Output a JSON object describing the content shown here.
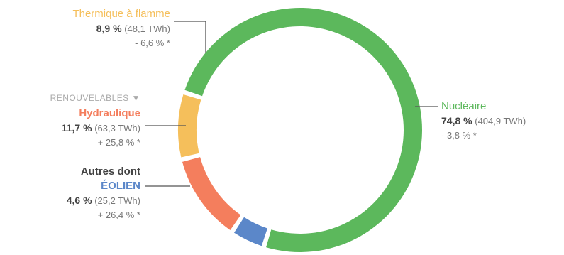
{
  "chart_data": {
    "type": "donut",
    "segments": [
      {
        "name": "Nucléaire",
        "percent": "74,8 %",
        "energy": "404,9 TWh",
        "change": "- 3,8 % *",
        "value": 74.8,
        "color": "#5cb85c"
      },
      {
        "name": "Thermique à flamme",
        "percent": "8,9 %",
        "energy": "48,1 TWh",
        "change": "- 6,6 % *",
        "value": 8.9,
        "color": "#f5bf5b"
      },
      {
        "name": "Hydraulique",
        "percent": "11,7 %",
        "energy": "63,3 TWh",
        "change": "+ 25,8 % *",
        "value": 11.7,
        "color": "#f47e5d"
      },
      {
        "name": "ÉOLIEN",
        "prefix": "Autres dont",
        "percent": "4,6 %",
        "energy": "25,2 TWh",
        "change": "+ 26,4 % *",
        "value": 4.6,
        "color": "#5b87c9"
      }
    ],
    "group_label": "RENOUVELABLES ▼"
  }
}
